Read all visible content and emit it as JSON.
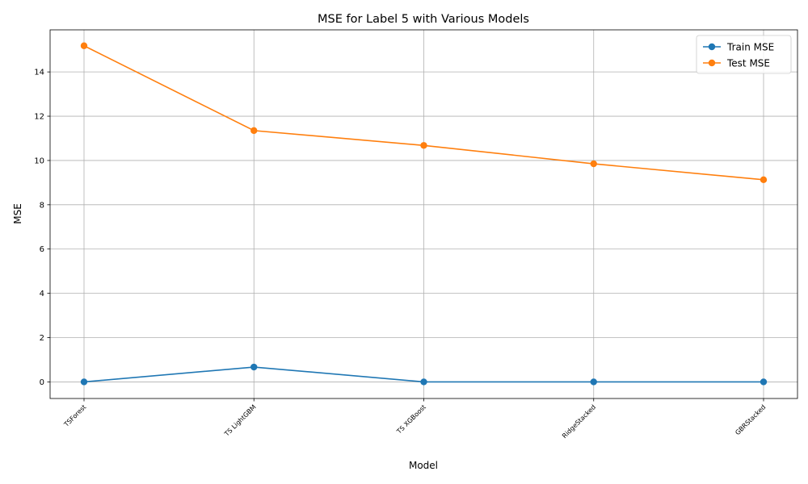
{
  "chart_data": {
    "type": "line",
    "title": "MSE for Label 5 with Various Models",
    "xlabel": "Model",
    "ylabel": "MSE",
    "categories": [
      "TSForest",
      "TS LightGBM",
      "TS XGBoost",
      "RidgeStacked",
      "GBRStacked"
    ],
    "series": [
      {
        "name": "Train MSE",
        "color": "#1f77b4",
        "values": [
          0.0,
          0.67,
          0.0,
          0.0,
          0.0
        ]
      },
      {
        "name": "Test MSE",
        "color": "#ff7f0e",
        "values": [
          15.18,
          11.35,
          10.68,
          9.85,
          9.13
        ]
      }
    ],
    "ylim": [
      -0.75,
      15.9
    ],
    "yticks": [
      0,
      2,
      4,
      6,
      8,
      10,
      12,
      14
    ],
    "grid": true,
    "legend": "top-right",
    "marker": "circle",
    "x_tick_rotation": 45
  }
}
